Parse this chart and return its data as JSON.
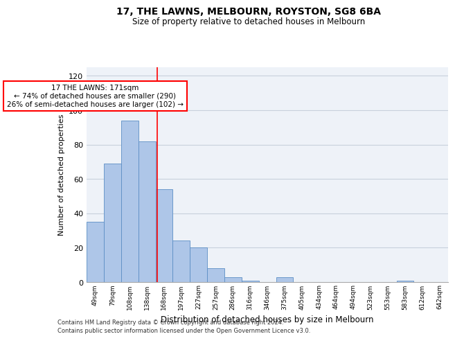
{
  "title_line1": "17, THE LAWNS, MELBOURN, ROYSTON, SG8 6BA",
  "title_line2": "Size of property relative to detached houses in Melbourn",
  "xlabel": "Distribution of detached houses by size in Melbourn",
  "ylabel": "Number of detached properties",
  "bin_labels": [
    "49sqm",
    "79sqm",
    "108sqm",
    "138sqm",
    "168sqm",
    "197sqm",
    "227sqm",
    "257sqm",
    "286sqm",
    "316sqm",
    "346sqm",
    "375sqm",
    "405sqm",
    "434sqm",
    "464sqm",
    "494sqm",
    "523sqm",
    "553sqm",
    "583sqm",
    "612sqm",
    "642sqm"
  ],
  "bar_heights": [
    35,
    69,
    94,
    82,
    54,
    24,
    20,
    8,
    3,
    1,
    0,
    3,
    0,
    0,
    0,
    0,
    0,
    0,
    1,
    0,
    0
  ],
  "bar_color": "#aec6e8",
  "bar_edgecolor": "#5b8ec4",
  "ylim": [
    0,
    125
  ],
  "yticks": [
    0,
    20,
    40,
    60,
    80,
    100,
    120
  ],
  "grid_color": "#c8d0dc",
  "bg_color": "#eef2f8",
  "annotation_text": "17 THE LAWNS: 171sqm\n← 74% of detached houses are smaller (290)\n26% of semi-detached houses are larger (102) →",
  "annotation_box_color": "white",
  "annotation_box_edgecolor": "red",
  "footnote1": "Contains HM Land Registry data © Crown copyright and database right 2024.",
  "footnote2": "Contains public sector information licensed under the Open Government Licence v3.0."
}
